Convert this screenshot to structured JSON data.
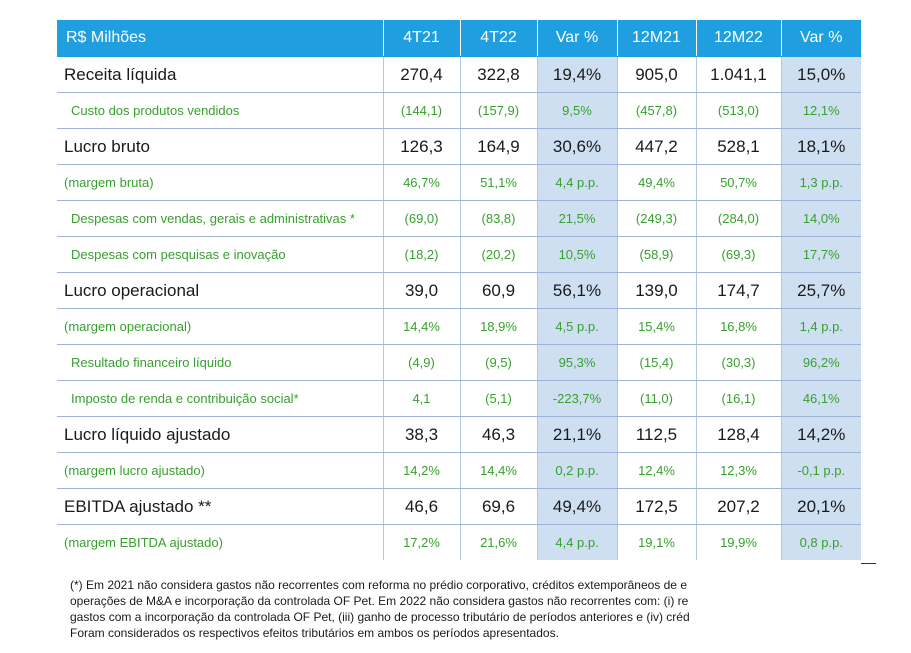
{
  "table": {
    "headers": [
      "R$ Milhões",
      "4T21",
      "4T22",
      "Var %",
      "12M21",
      "12M22",
      "Var %"
    ],
    "rows": [
      {
        "type": "main",
        "label": "Receita líquida",
        "v": [
          "270,4",
          "322,8",
          "19,4%",
          "905,0",
          "1.041,1",
          "15,0%"
        ]
      },
      {
        "type": "sub-ind",
        "label": "Custo dos produtos vendidos",
        "v": [
          "(144,1)",
          "(157,9)",
          "9,5%",
          "(457,8)",
          "(513,0)",
          "12,1%"
        ]
      },
      {
        "type": "main",
        "label": "Lucro bruto",
        "v": [
          "126,3",
          "164,9",
          "30,6%",
          "447,2",
          "528,1",
          "18,1%"
        ]
      },
      {
        "type": "sub",
        "label": "(margem bruta)",
        "v": [
          "46,7%",
          "51,1%",
          "4,4 p.p.",
          "49,4%",
          "50,7%",
          "1,3 p.p."
        ]
      },
      {
        "type": "sub-wrap",
        "label": "Despesas com vendas, gerais e administrativas *",
        "v": [
          "(69,0)",
          "(83,8)",
          "21,5%",
          "(249,3)",
          "(284,0)",
          "14,0%"
        ]
      },
      {
        "type": "sub-ind",
        "label": "Despesas com pesquisas e inovação",
        "v": [
          "(18,2)",
          "(20,2)",
          "10,5%",
          "(58,9)",
          "(69,3)",
          "17,7%"
        ]
      },
      {
        "type": "main",
        "label": "Lucro operacional",
        "v": [
          "39,0",
          "60,9",
          "56,1%",
          "139,0",
          "174,7",
          "25,7%"
        ]
      },
      {
        "type": "sub",
        "label": "(margem operacional)",
        "v": [
          "14,4%",
          "18,9%",
          "4,5 p.p.",
          "15,4%",
          "16,8%",
          "1,4 p.p."
        ]
      },
      {
        "type": "sub-ind",
        "label": "Resultado financeiro líquido",
        "v": [
          "(4,9)",
          "(9,5)",
          "95,3%",
          "(15,4)",
          "(30,3)",
          "96,2%"
        ]
      },
      {
        "type": "sub-ind",
        "label": "Imposto de renda e contribuição social*",
        "v": [
          "4,1",
          "(5,1)",
          "-223,7%",
          "(11,0)",
          "(16,1)",
          "46,1%"
        ]
      },
      {
        "type": "main",
        "label": "Lucro líquido ajustado",
        "v": [
          "38,3",
          "46,3",
          "21,1%",
          "112,5",
          "128,4",
          "14,2%"
        ]
      },
      {
        "type": "sub",
        "label": "(margem lucro ajustado)",
        "v": [
          "14,2%",
          "14,4%",
          "0,2 p.p.",
          "12,4%",
          "12,3%",
          "-0,1 p.p."
        ]
      },
      {
        "type": "main",
        "label": "EBITDA ajustado **",
        "v": [
          "46,6",
          "69,6",
          "49,4%",
          "172,5",
          "207,2",
          "20,1%"
        ]
      },
      {
        "type": "sub",
        "label": "(margem EBITDA ajustado)",
        "v": [
          "17,2%",
          "21,6%",
          "4,4 p.p.",
          "19,1%",
          "19,9%",
          "0,8 p.p."
        ]
      }
    ]
  },
  "footnote": [
    "(*) Em 2021 não considera gastos não recorrentes com reforma no prédio corporativo, créditos extemporâneos de e",
    "operações de M&A e incorporação da controlada OF Pet. Em 2022 não considera gastos não recorrentes com: (i) re",
    "gastos com a incorporação da controlada OF Pet, (iii) ganho de processo tributário de períodos anteriores e (iv) créd",
    "Foram considerados os respectivos efeitos tributários em ambos os períodos apresentados."
  ]
}
